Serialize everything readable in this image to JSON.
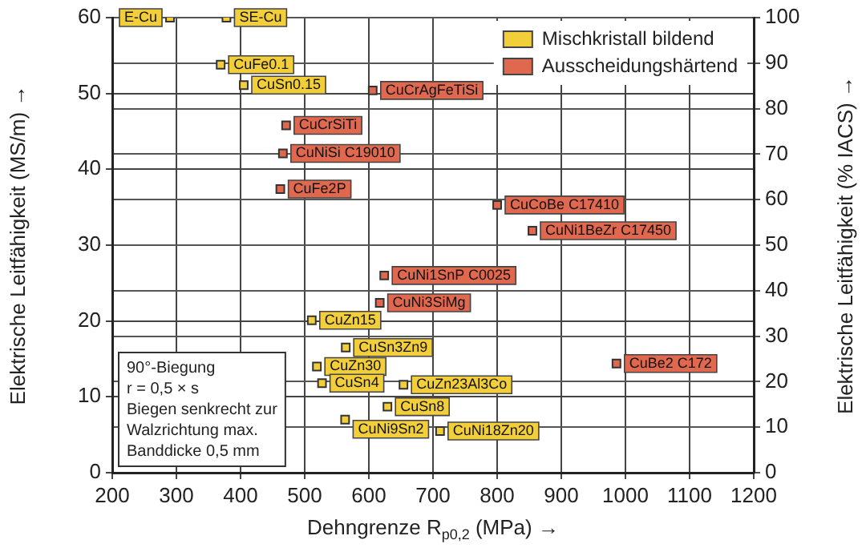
{
  "chart_data": {
    "type": "scatter",
    "xlabel": "Dehngrenze R$_{p0,2}$ (MPa) →",
    "ylabel": "Elektrische Leitfähigkeit (MS/m) →",
    "y2label": "Elektrische Leitfähigkeit (% IACS) →",
    "xlim": [
      200,
      1200
    ],
    "xticks": [
      200,
      300,
      400,
      500,
      600,
      700,
      800,
      900,
      1000,
      1100,
      1200
    ],
    "ylim": [
      0,
      60
    ],
    "yticks": [
      0,
      10,
      20,
      30,
      40,
      50,
      60
    ],
    "y2lim": [
      0,
      100
    ],
    "y2ticks": [
      0,
      10,
      20,
      30,
      40,
      50,
      60,
      70,
      80,
      90,
      100
    ],
    "grid": true,
    "legend": "top right",
    "marker": "square",
    "series": [
      {
        "name": "Mischkristall bildend",
        "color": "#f2cf3a",
        "x": [
          290,
          378,
          369,
          405,
          511,
          564,
          519,
          527,
          654,
          629,
          563,
          711
        ],
        "values": [
          60,
          60,
          53.8,
          51.1,
          20.1,
          16.5,
          14,
          11.8,
          11.6,
          8.7,
          7,
          5.5
        ]
      },
      {
        "name": "Ausscheidungshärtend",
        "color": "#e0684f",
        "x": [
          606,
          471,
          466,
          462,
          800,
          855,
          624,
          617,
          986
        ],
        "values": [
          50.4,
          45.8,
          42.1,
          37.4,
          35.3,
          31.9,
          26,
          22.4,
          14.4
        ]
      }
    ],
    "annotations": [
      {
        "text": "E-Cu",
        "x": 290,
        "y": 60
      },
      {
        "text": "SE-Cu",
        "x": 378,
        "y": 60
      },
      {
        "text": "CuFe0.1",
        "x": 369,
        "y": 53.8
      },
      {
        "text": "CuSn0.15",
        "x": 405,
        "y": 51.1
      },
      {
        "text": "CuZn15",
        "x": 511,
        "y": 20.1
      },
      {
        "text": "CuSn3Zn9",
        "x": 564,
        "y": 16.5
      },
      {
        "text": "CuZn30",
        "x": 519,
        "y": 14
      },
      {
        "text": "CuSn4",
        "x": 527,
        "y": 11.8
      },
      {
        "text": "CuZn23Al3Co",
        "x": 654,
        "y": 11.6
      },
      {
        "text": "CuNi9Sn2",
        "x": 563,
        "y": 7
      },
      {
        "text": "CuSn8",
        "x": 629,
        "y": 8.7
      },
      {
        "text": "CuNi18Zn20",
        "x": 711,
        "y": 5.5
      },
      {
        "text": "CuCrAgFeTiSi",
        "x": 606,
        "y": 50.4
      },
      {
        "text": "CuCrSiTi",
        "x": 471,
        "y": 45.8
      },
      {
        "text": "CuNiSi C19010",
        "x": 466,
        "y": 42.1
      },
      {
        "text": "CuFe2P",
        "x": 462,
        "y": 37.4
      },
      {
        "text": "CuCoBe C17410",
        "x": 800,
        "y": 35.3
      },
      {
        "text": "CuNi1BeZr C17450",
        "x": 855,
        "y": 31.9
      },
      {
        "text": "CuNi1SnP C0025",
        "x": 624,
        "y": 26
      },
      {
        "text": "CuNi3SiMg",
        "x": 617,
        "y": 22.4
      },
      {
        "text": "CuBe2 C172",
        "x": 986,
        "y": 14.4
      },
      "90°-Biegung\nr = 0,5 × s\nBiegen senkrecht zur\nWalzrichtung max.\nBanddicke 0,5 mm"
    ]
  }
}
